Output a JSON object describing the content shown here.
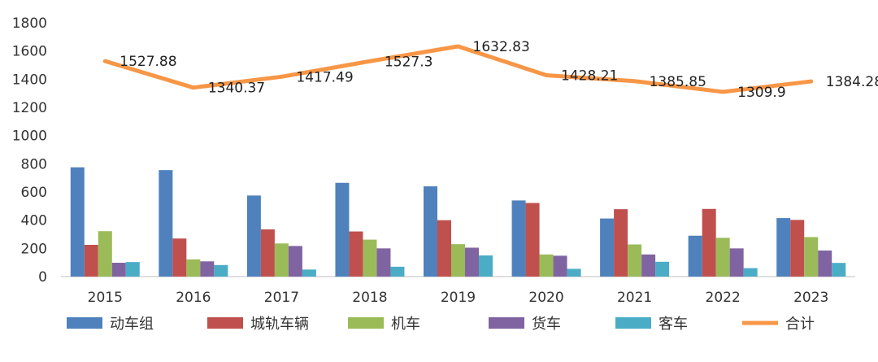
{
  "chart_data": {
    "type": "bar",
    "title": "",
    "xlabel": "",
    "ylabel": "",
    "categories": [
      "2015",
      "2016",
      "2017",
      "2018",
      "2019",
      "2020",
      "2021",
      "2022",
      "2023"
    ],
    "ylim": [
      0,
      1800
    ],
    "yticks": [
      0,
      200,
      400,
      600,
      800,
      1000,
      1200,
      1400,
      1600,
      1800
    ],
    "grid": false,
    "legend_position": "bottom",
    "series": [
      {
        "name": "动车组",
        "type": "bar",
        "color": "#4f81bd",
        "values": [
          775,
          755,
          575,
          665,
          640,
          540,
          412,
          290,
          415
        ]
      },
      {
        "name": "城轨车辆",
        "type": "bar",
        "color": "#c0504d",
        "values": [
          225,
          270,
          335,
          320,
          400,
          522,
          478,
          480,
          402
        ]
      },
      {
        "name": "机车",
        "type": "bar",
        "color": "#9bbb59",
        "values": [
          322,
          122,
          235,
          262,
          230,
          157,
          228,
          275,
          280
        ]
      },
      {
        "name": "货车",
        "type": "bar",
        "color": "#8064a2",
        "values": [
          98,
          108,
          217,
          200,
          205,
          148,
          157,
          200,
          185
        ]
      },
      {
        "name": "客车",
        "type": "bar",
        "color": "#4bacc6",
        "values": [
          103,
          82,
          50,
          70,
          150,
          55,
          105,
          60,
          97
        ]
      },
      {
        "name": "合计",
        "type": "line",
        "color": "#f79646",
        "values": [
          1527.88,
          1340.37,
          1417.49,
          1527.3,
          1632.83,
          1428.21,
          1385.85,
          1309.9,
          1384.28
        ]
      }
    ],
    "data_labels": [
      "1527.88",
      "1340.37",
      "1417.49",
      "1527.3",
      "1632.83",
      "1428.21",
      "1385.85",
      "1309.9",
      "1384.28"
    ]
  }
}
